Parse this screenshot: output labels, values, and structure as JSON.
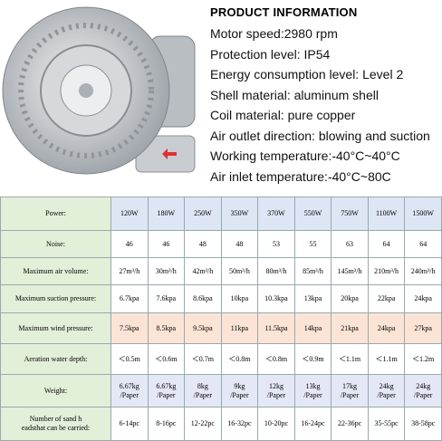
{
  "header": {
    "title": "PRODUCT INFORMATION",
    "specs": [
      "Motor speed:2980 rpm",
      "Protection level: IP54",
      "Energy consumption level: Level 2",
      "Shell material: aluminum shell",
      "Coil material: pure copper",
      "Air outlet direction: blowing and suction",
      "Working temperature:-40°C~40°C",
      "Air inlet temperature:-40°C~80C"
    ]
  },
  "table": {
    "rows": [
      {
        "label": "Power:",
        "cells": [
          "120W",
          "180W",
          "250W",
          "350W",
          "370W",
          "550W",
          "750W",
          "1100W",
          "1500W"
        ]
      },
      {
        "label": "Noise:",
        "cells": [
          "46",
          "46",
          "48",
          "48",
          "53",
          "55",
          "63",
          "64",
          "64"
        ]
      },
      {
        "label": "Maximum air volume:",
        "cells": [
          "27m³/h",
          "30m³/h",
          "42m³/h",
          "50m³/h",
          "80m³/h",
          "85m³/h",
          "145m³/h",
          "210m³/h",
          "240m³/h"
        ]
      },
      {
        "label": "Maximum suction pressure:",
        "cells": [
          "6.7kpa",
          "7.6kpa",
          "8.6kpa",
          "10kpa",
          "10.3kpa",
          "13kpa",
          "20kpa",
          "22kpa",
          "24kpa"
        ]
      },
      {
        "label": "Maximum wind pressure:",
        "cells": [
          "7.5kpa",
          "8.5kpa",
          "9.5kpa",
          "11kpa",
          "11.5kpa",
          "14kpa",
          "21kpa",
          "24kpa",
          "27kpa"
        ]
      },
      {
        "label": "Aeration water depth:",
        "cells": [
          "＜0.5m",
          "＜0.6m",
          "＜0.7m",
          "＜0.8m",
          "＜0.8m",
          "＜0.9m",
          "＜1.1m",
          "＜1.1m",
          "＜1.2m"
        ]
      },
      {
        "label": "Weight:",
        "cells": [
          "6.67kg\n/Paper",
          "6.67kg\n/Paper",
          "8kg\n/Paper",
          "9kg\n/Paper",
          "12kg\n/Paper",
          "13kg\n/Paper",
          "17kg\n/Paper",
          "24kg\n/Paper",
          "24kg\n/Paper"
        ]
      },
      {
        "label": "Number of sand h\neadsthat can be carried:",
        "cells": [
          "6-14pc",
          "8-16pc",
          "12-22pc",
          "16-32pc",
          "10-20pc",
          "16-24pc",
          "22-36pc",
          "35-55pc",
          "38-58pc"
        ]
      }
    ]
  }
}
